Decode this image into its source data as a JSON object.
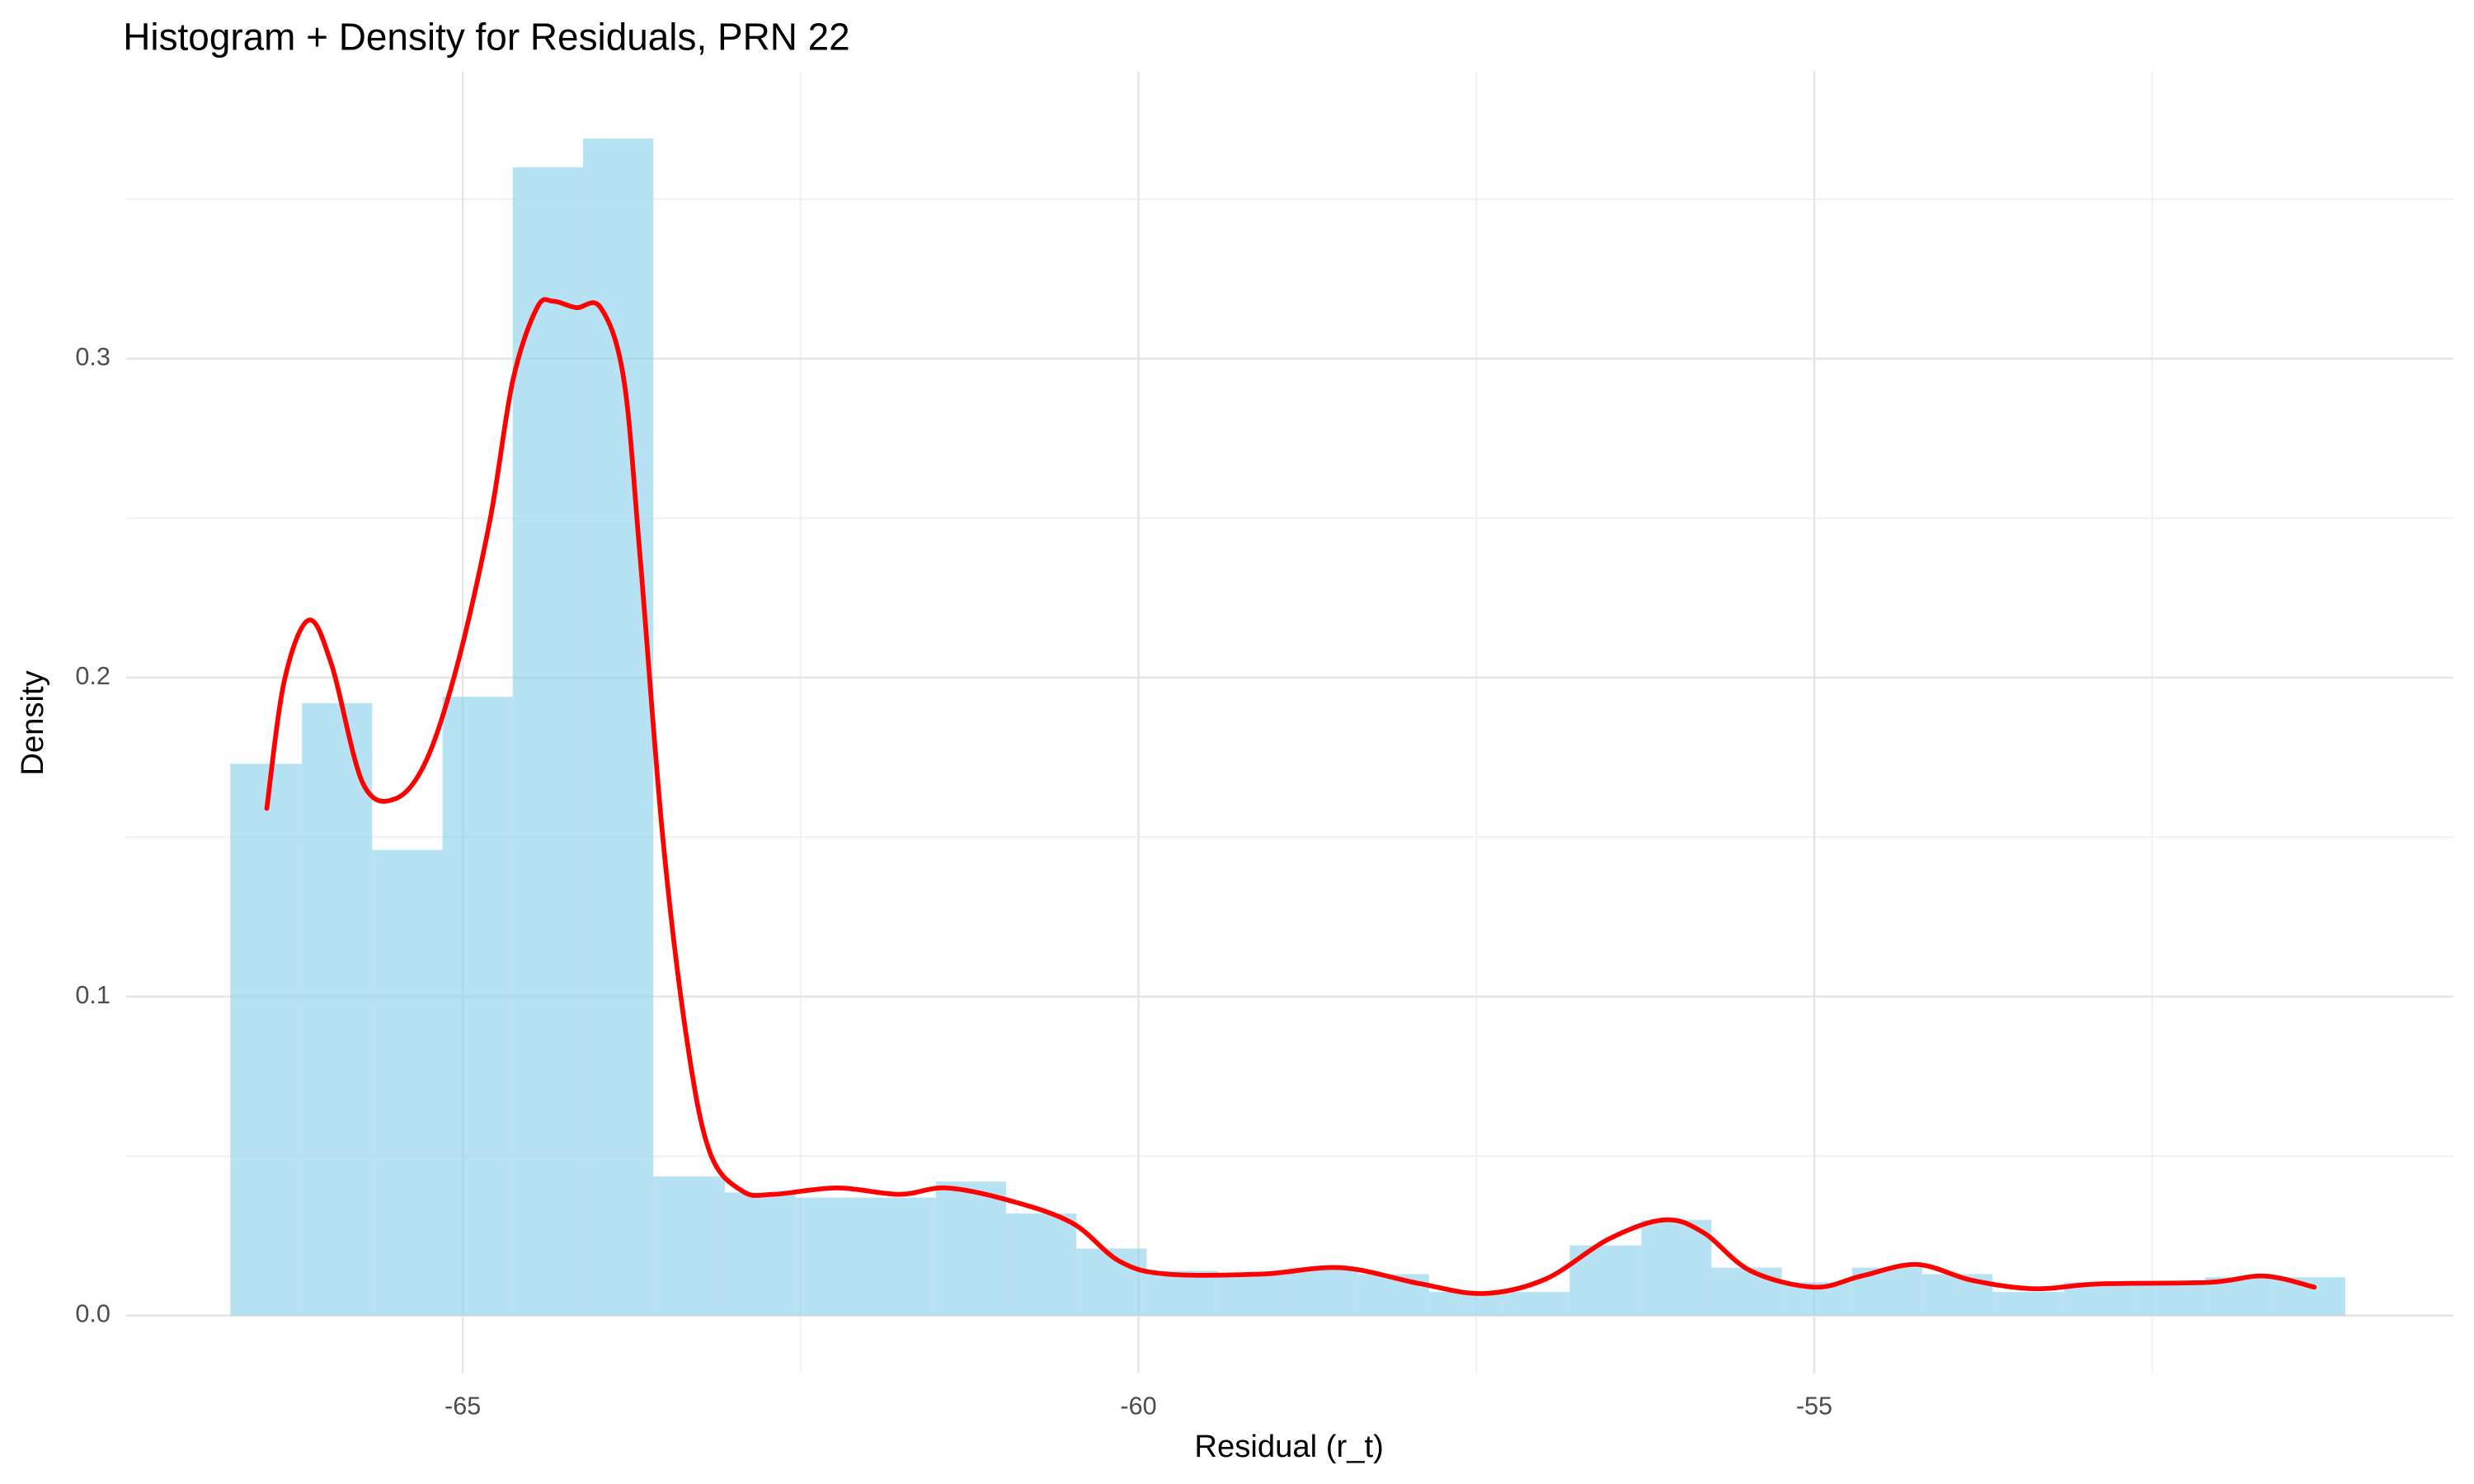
{
  "chart_data": {
    "type": "histogram",
    "title": "Histogram + Density for Residuals, PRN 22",
    "x_label": "Residual (r_t)",
    "y_label": "Density",
    "bins": [
      -66.72,
      -66.19,
      -65.67,
      -65.15,
      -64.63,
      -64.11,
      -63.59,
      -63.06,
      -62.54,
      -62.02,
      -61.5,
      -60.98,
      -60.46,
      -59.94,
      -59.41,
      -58.89,
      -58.37,
      -57.85,
      -57.33,
      -56.81,
      -56.28,
      -55.76,
      -55.24,
      -54.72,
      -54.2,
      -53.68,
      -53.15,
      -52.63,
      -52.11,
      -51.59,
      -51.07
    ],
    "values": [
      0.173,
      0.192,
      0.146,
      0.194,
      0.36,
      0.369,
      0.0436,
      0.0386,
      0.037,
      0.037,
      0.042,
      0.032,
      0.021,
      0.014,
      0.013,
      0.015,
      0.013,
      0.0074,
      0.0074,
      0.022,
      0.03,
      0.015,
      0.0104,
      0.015,
      0.013,
      0.0074,
      0.0104,
      0.0104,
      0.012,
      0.012
    ],
    "color": "#87ceeb",
    "density": {
      "color": "#ff0000",
      "x": [
        -66.45,
        -66.32,
        -66.14,
        -65.97,
        -65.74,
        -65.5,
        -65.27,
        -65.04,
        -64.8,
        -64.63,
        -64.45,
        -64.33,
        -64.16,
        -63.98,
        -63.81,
        -63.69,
        -63.52,
        -63.34,
        -63.17,
        -62.93,
        -62.7,
        -62.23,
        -61.77,
        -61.42,
        -60.95,
        -60.49,
        -60.14,
        -59.79,
        -59.09,
        -58.5,
        -57.92,
        -57.45,
        -56.99,
        -56.52,
        -56.11,
        -55.82,
        -55.47,
        -55.0,
        -54.65,
        -54.24,
        -53.83,
        -53.37,
        -52.9,
        -52.08,
        -51.67,
        -51.3
      ],
      "values": [
        0.159,
        0.199,
        0.218,
        0.204,
        0.167,
        0.162,
        0.174,
        0.204,
        0.249,
        0.293,
        0.316,
        0.318,
        0.316,
        0.316,
        0.294,
        0.239,
        0.15,
        0.086,
        0.051,
        0.039,
        0.038,
        0.04,
        0.038,
        0.04,
        0.036,
        0.029,
        0.017,
        0.013,
        0.013,
        0.015,
        0.01,
        0.0069,
        0.0114,
        0.024,
        0.03,
        0.026,
        0.014,
        0.0089,
        0.0124,
        0.016,
        0.011,
        0.0084,
        0.0099,
        0.0104,
        0.0124,
        0.0089
      ]
    },
    "xlim": [
      -67.49,
      -50.27
    ],
    "ylim": [
      -0.018,
      0.39
    ],
    "xticks": [
      -65,
      -60,
      -55
    ],
    "yticks": [
      {
        "value": 0,
        "label": "0.0"
      },
      0.1,
      0.2,
      0.3
    ],
    "grid": true
  }
}
